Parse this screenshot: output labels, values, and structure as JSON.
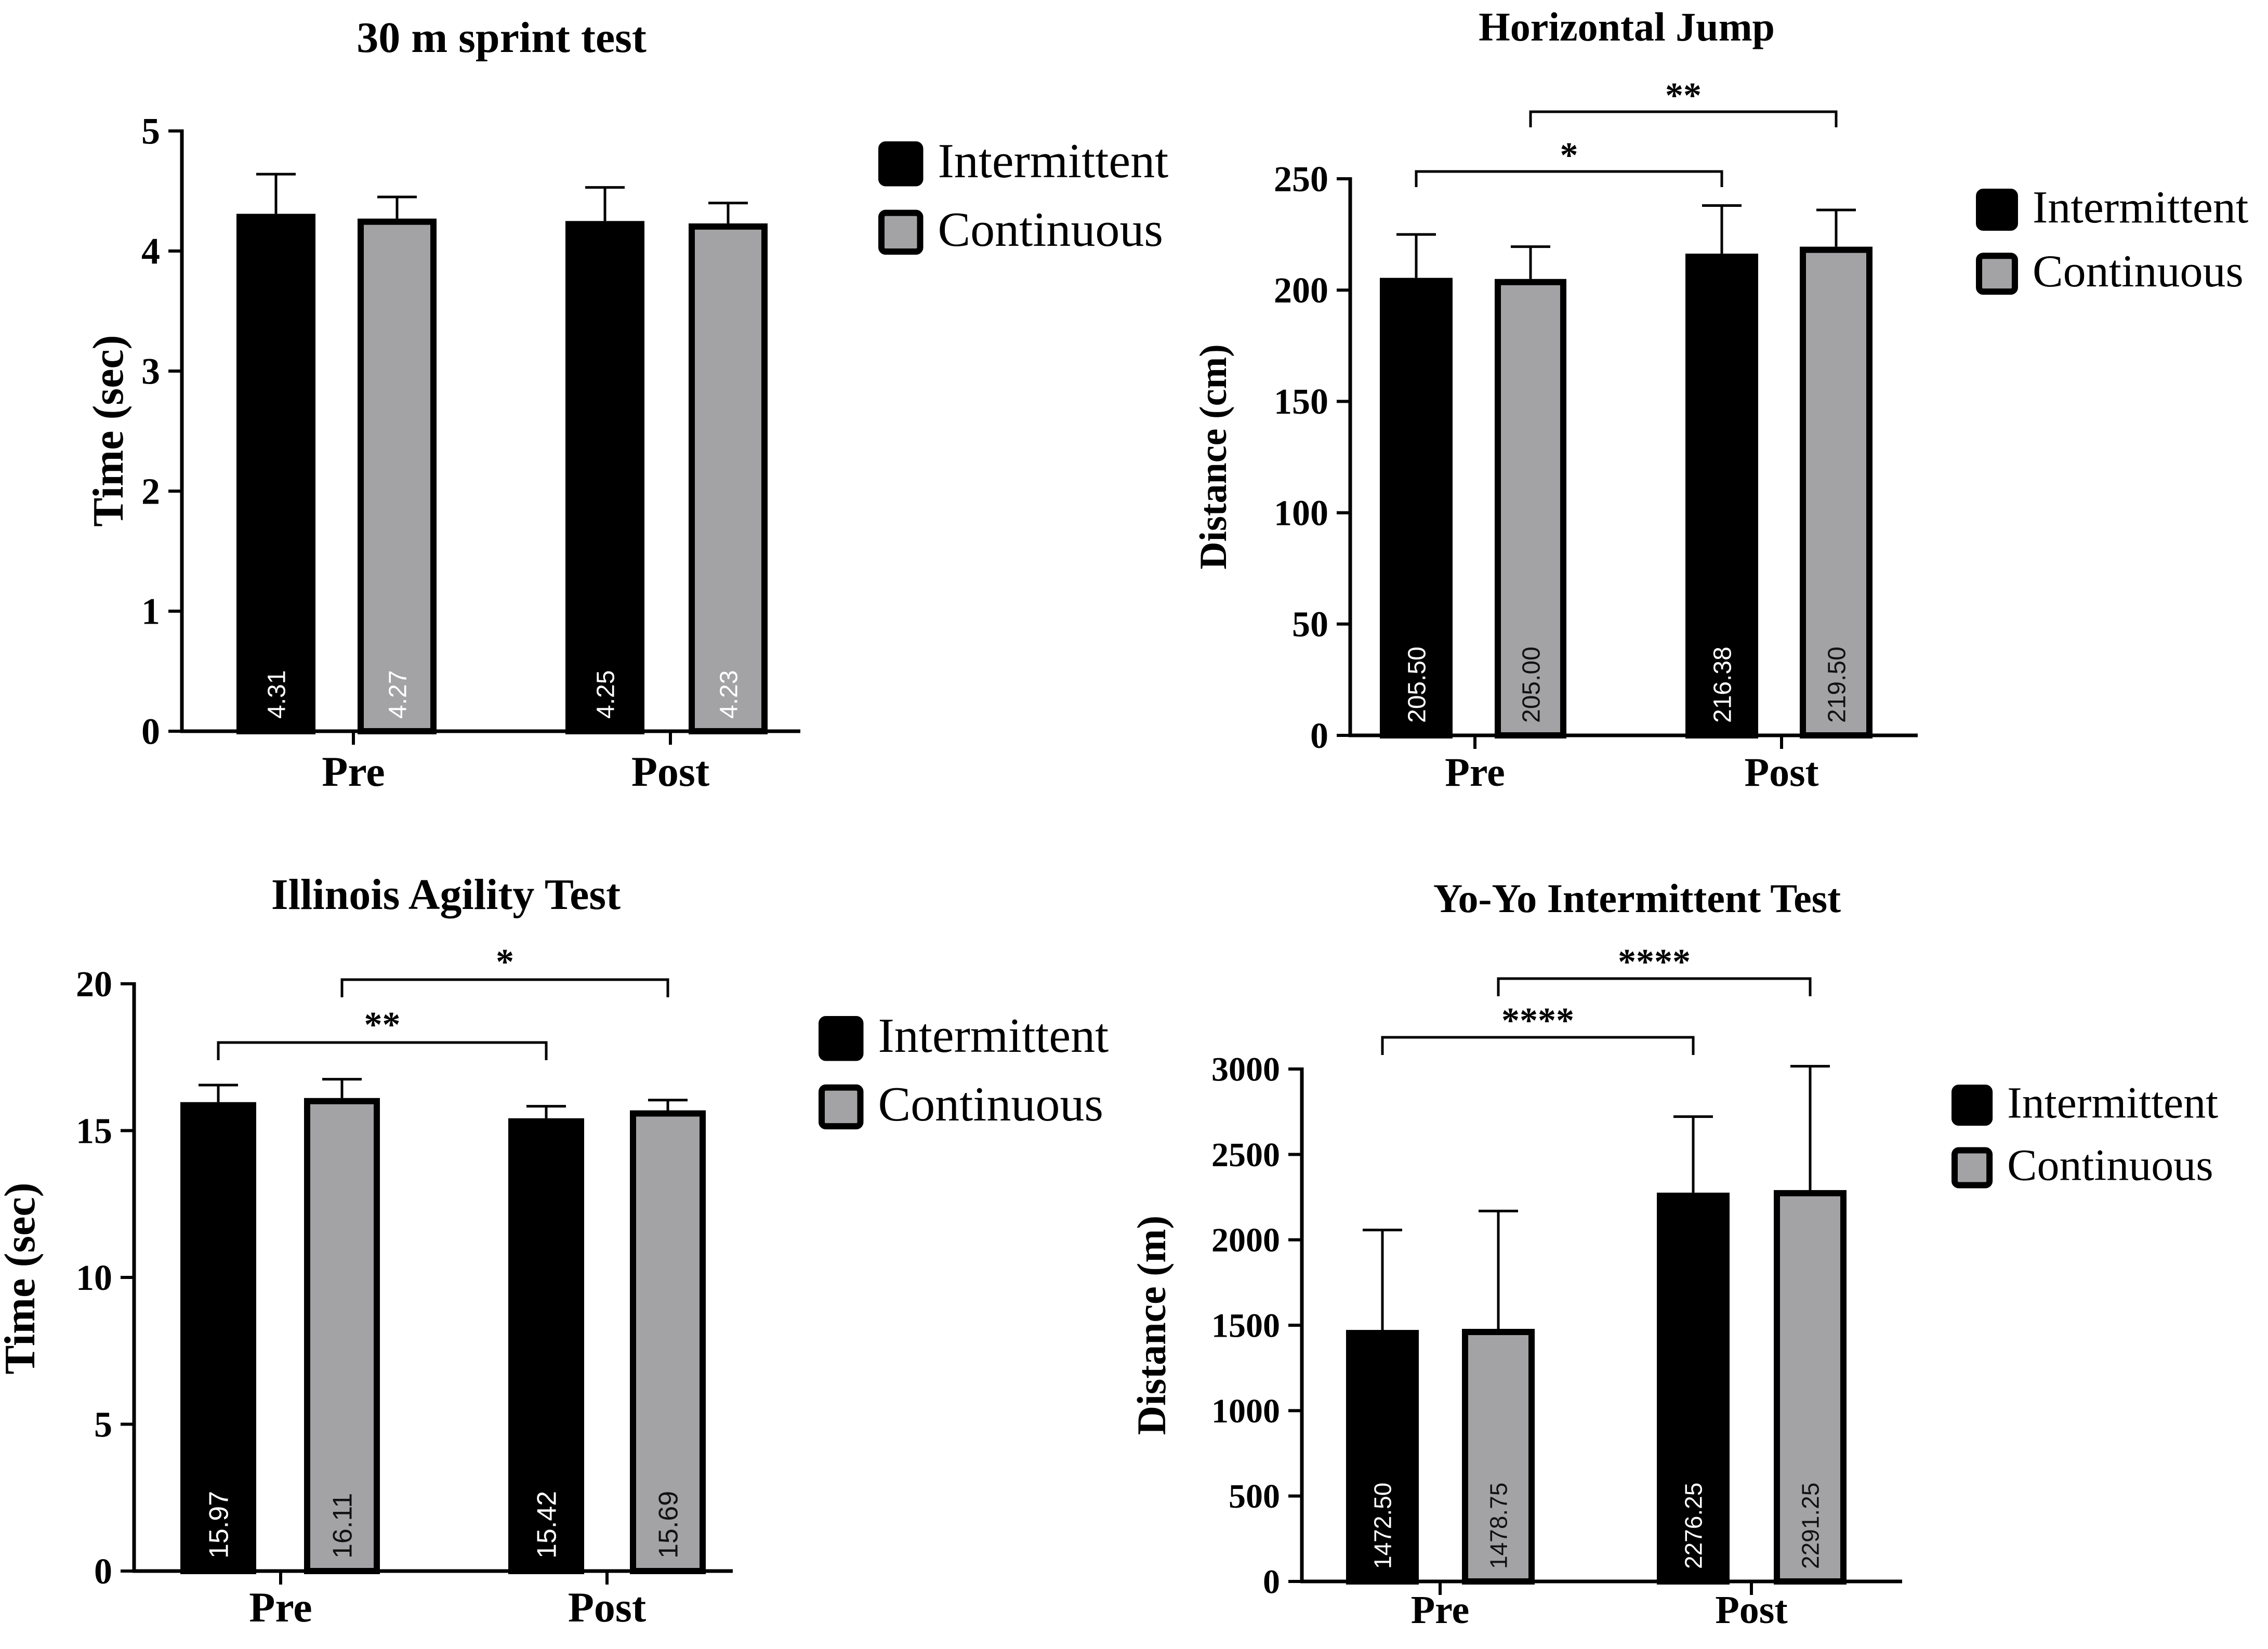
{
  "colors": {
    "intermittent": "#000000",
    "continuous": "#a3a3a6",
    "outline": "#000000",
    "background": "#ffffff"
  },
  "chart_data": [
    {
      "type": "bar",
      "title": "30 m sprint test",
      "xlabel": "",
      "ylabel": "Time (sec)",
      "ylim": [
        0,
        5
      ],
      "yticks": [
        "0",
        "1",
        "2",
        "3",
        "4",
        "5"
      ],
      "categories": [
        "Pre",
        "Post"
      ],
      "series": [
        {
          "name": "Intermittent",
          "values": [
            4.31,
            4.25
          ],
          "errors": [
            0.33,
            0.28
          ],
          "labels": [
            "4.31",
            "4.25"
          ]
        },
        {
          "name": "Continuous",
          "values": [
            4.27,
            4.23
          ],
          "errors": [
            0.18,
            0.17
          ],
          "labels": [
            "4.27",
            "4.23"
          ]
        }
      ],
      "legend": [
        "Intermittent",
        "Continuous"
      ],
      "significance": []
    },
    {
      "type": "bar",
      "title": "Horizontal Jump",
      "xlabel": "",
      "ylabel": "Distance (cm)",
      "ylim": [
        0,
        250
      ],
      "yticks": [
        "0",
        "50",
        "100",
        "150",
        "200",
        "250"
      ],
      "categories": [
        "Pre",
        "Post"
      ],
      "series": [
        {
          "name": "Intermittent",
          "values": [
            205.5,
            216.38
          ],
          "errors": [
            19.5,
            21.6
          ],
          "labels": [
            "205.50",
            "216.38"
          ]
        },
        {
          "name": "Continuous",
          "values": [
            205.0,
            219.5
          ],
          "errors": [
            14.5,
            16.5
          ],
          "labels": [
            "205.00",
            "219.50"
          ]
        }
      ],
      "legend": [
        "Intermittent",
        "Continuous"
      ],
      "significance": [
        {
          "label": "*",
          "from": "Pre Intermittent",
          "to": "Post Intermittent"
        },
        {
          "label": "**",
          "from": "Pre Continuous",
          "to": "Post Continuous"
        }
      ]
    },
    {
      "type": "bar",
      "title": "Illinois Agility Test",
      "xlabel": "",
      "ylabel": "Time (sec)",
      "ylim": [
        0,
        20
      ],
      "yticks": [
        "0",
        "5",
        "10",
        "15",
        "20"
      ],
      "categories": [
        "Pre",
        "Post"
      ],
      "series": [
        {
          "name": "Intermittent",
          "values": [
            15.97,
            15.42
          ],
          "errors": [
            0.58,
            0.41
          ],
          "labels": [
            "15.97",
            "15.42"
          ]
        },
        {
          "name": "Continuous",
          "values": [
            16.11,
            15.69
          ],
          "errors": [
            0.64,
            0.35
          ],
          "labels": [
            "16.11",
            "15.69"
          ]
        }
      ],
      "legend": [
        "Intermittent",
        "Continuous"
      ],
      "significance": [
        {
          "label": "**",
          "from": "Pre Intermittent",
          "to": "Post Intermittent"
        },
        {
          "label": "*",
          "from": "Pre Continuous",
          "to": "Post Continuous"
        }
      ]
    },
    {
      "type": "bar",
      "title": "Yo-Yo Intermittent Test",
      "xlabel": "",
      "ylabel": "Distance (m)",
      "ylim": [
        0,
        3000
      ],
      "yticks": [
        "0",
        "500",
        "1000",
        "1500",
        "2000",
        "2500",
        "3000"
      ],
      "categories": [
        "Pre",
        "Post"
      ],
      "series": [
        {
          "name": "Intermittent",
          "values": [
            1472.5,
            2276.25
          ],
          "errors": [
            585,
            445
          ],
          "labels": [
            "1472.50",
            "2276.25"
          ]
        },
        {
          "name": "Continuous",
          "values": [
            1478.75,
            2291.25
          ],
          "errors": [
            690,
            725
          ],
          "labels": [
            "1478.75",
            "2291.25"
          ]
        }
      ],
      "legend": [
        "Intermittent",
        "Continuous"
      ],
      "significance": [
        {
          "label": "****",
          "from": "Pre Intermittent",
          "to": "Post Intermittent"
        },
        {
          "label": "****",
          "from": "Pre Continuous",
          "to": "Post Continuous"
        }
      ]
    }
  ]
}
